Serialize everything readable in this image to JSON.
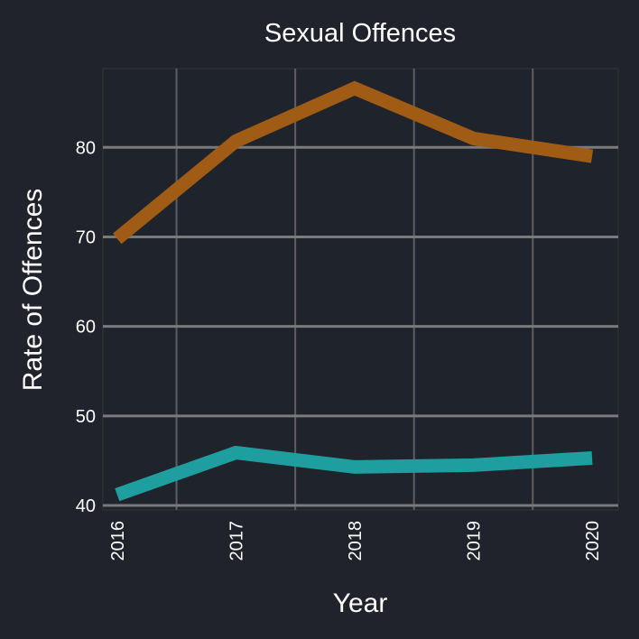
{
  "chart_data": {
    "type": "line",
    "title": "Sexual Offences",
    "xlabel": "Year",
    "ylabel": "Rate of Offences",
    "x": [
      "2016",
      "2017",
      "2018",
      "2019",
      "2020"
    ],
    "xlim": [
      2015.88,
      2020.22
    ],
    "ylim": [
      39.5,
      88.8
    ],
    "yticks": [
      40,
      50,
      60,
      70,
      80
    ],
    "grid": true,
    "legend": "none",
    "series": [
      {
        "values": [
          69.8,
          80.7,
          86.6,
          81.0,
          79.0
        ],
        "color": "#a05c14"
      },
      {
        "values": [
          41.2,
          45.9,
          44.3,
          44.5,
          45.3
        ],
        "color": "#1f9ea0"
      }
    ]
  }
}
